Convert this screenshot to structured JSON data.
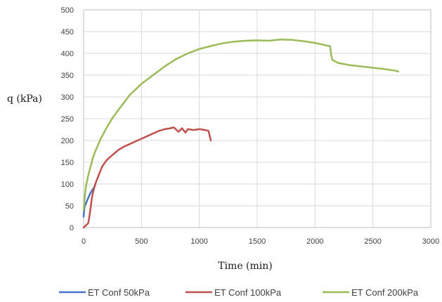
{
  "chart_data": {
    "type": "line",
    "title": "",
    "xlabel": "Time (min)",
    "ylabel": "q (kPa)",
    "xlim": [
      0,
      3000
    ],
    "ylim": [
      0,
      500
    ],
    "x_ticks": [
      0,
      500,
      1000,
      1500,
      2000,
      2500,
      3000
    ],
    "y_ticks": [
      0,
      50,
      100,
      150,
      200,
      250,
      300,
      350,
      400,
      450,
      500
    ],
    "grid": true,
    "legend_position": "bottom",
    "series": [
      {
        "name": "ET Conf 50kPa",
        "color": "#4472c4",
        "x": [
          0,
          5,
          10,
          20,
          30,
          40,
          50,
          60,
          70,
          80,
          90,
          100
        ],
        "y": [
          25,
          40,
          50,
          55,
          62,
          68,
          74,
          80,
          84,
          88,
          92,
          97
        ]
      },
      {
        "name": "ET Conf 100kPa",
        "color": "#c0504d",
        "x": [
          0,
          20,
          40,
          50,
          60,
          70,
          80,
          100,
          130,
          160,
          200,
          250,
          300,
          350,
          400,
          450,
          500,
          550,
          600,
          650,
          700,
          750,
          780,
          820,
          850,
          880,
          900,
          950,
          1000,
          1050,
          1080,
          1090,
          1100
        ],
        "y": [
          0,
          5,
          10,
          25,
          45,
          65,
          80,
          100,
          120,
          140,
          155,
          167,
          178,
          186,
          192,
          198,
          204,
          210,
          216,
          222,
          226,
          228,
          230,
          220,
          228,
          218,
          226,
          224,
          226,
          224,
          222,
          210,
          200
        ]
      },
      {
        "name": "ET Conf 200kPa",
        "color": "#9bbb59",
        "x": [
          0,
          10,
          20,
          40,
          60,
          80,
          100,
          150,
          200,
          250,
          300,
          400,
          500,
          600,
          700,
          800,
          900,
          1000,
          1100,
          1200,
          1300,
          1400,
          1500,
          1600,
          1700,
          1800,
          1900,
          2000,
          2100,
          2130,
          2140,
          2150,
          2200,
          2300,
          2400,
          2500,
          2600,
          2700,
          2720
        ],
        "y": [
          40,
          70,
          95,
          120,
          140,
          160,
          175,
          205,
          230,
          252,
          270,
          305,
          330,
          350,
          370,
          387,
          400,
          410,
          417,
          423,
          427,
          429,
          430,
          429,
          432,
          431,
          428,
          424,
          418,
          417,
          395,
          385,
          378,
          373,
          370,
          367,
          364,
          360,
          358
        ]
      }
    ]
  }
}
